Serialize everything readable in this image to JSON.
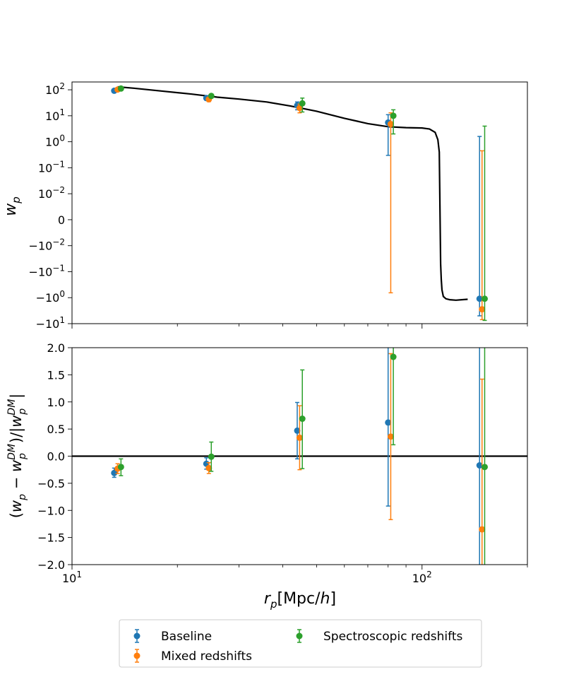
{
  "chart_data": [
    {
      "type": "scatter",
      "panel": "top",
      "ylabel_main": "w",
      "ylabel_sub": "p",
      "xscale": "log",
      "yscale": "symlog",
      "xlim": [
        10,
        200
      ],
      "ylim": [
        -10,
        200
      ],
      "yticks": [
        {
          "base": "10",
          "exp": "2",
          "sign": ""
        },
        {
          "base": "10",
          "exp": "1",
          "sign": ""
        },
        {
          "base": "10",
          "exp": "0",
          "sign": ""
        },
        {
          "base": "10",
          "exp": "−1",
          "sign": ""
        },
        {
          "base": "10",
          "exp": "−2",
          "sign": ""
        },
        {
          "base": "0",
          "exp": "",
          "sign": ""
        },
        {
          "base": "10",
          "exp": "−2",
          "sign": "−"
        },
        {
          "base": "10",
          "exp": "−1",
          "sign": "−"
        },
        {
          "base": "10",
          "exp": "0",
          "sign": "−"
        },
        {
          "base": "10",
          "exp": "1",
          "sign": "−"
        }
      ],
      "model_curve": {
        "name": "DM model",
        "color": "#000000",
        "x": [
          13.5,
          15,
          18,
          22,
          26,
          30,
          36,
          42,
          50,
          60,
          70,
          80,
          90,
          100,
          105,
          109,
          111,
          112,
          113,
          113.5,
          114,
          115,
          117,
          120,
          125,
          130,
          135
        ],
        "y": [
          130,
          115,
          90,
          68,
          52,
          44,
          34,
          24,
          15,
          8,
          5,
          3.8,
          3.5,
          3.4,
          3.1,
          2.3,
          1.2,
          0.4,
          -0.05,
          -0.2,
          -0.5,
          -0.9,
          -1.1,
          -1.2,
          -1.25,
          -1.2,
          -1.15
        ]
      },
      "series": [
        {
          "name": "Baseline",
          "color": "#1f77b4",
          "x": [
            13.2,
            24.2,
            44.0,
            80.0,
            146.0
          ],
          "y": [
            92,
            48,
            25,
            5.5,
            -1.1
          ],
          "err_lo": [
            84,
            40,
            17,
            0.3,
            -5
          ],
          "err_hi": [
            100,
            56,
            34,
            11,
            1.6
          ]
        },
        {
          "name": "Mixed redshifts",
          "color": "#ff7f0e",
          "x": [
            13.5,
            24.6,
            44.7,
            81.4,
            148.4
          ],
          "y": [
            102,
            43,
            20,
            4.8,
            -2.8
          ],
          "err_lo": [
            94,
            35,
            13,
            -0.65,
            -7
          ],
          "err_hi": [
            112,
            51,
            28,
            13,
            0.45
          ]
        },
        {
          "name": "Spectroscopic redshifts",
          "color": "#2ca02c",
          "x": [
            13.8,
            25.0,
            45.5,
            82.8,
            151.0
          ],
          "y": [
            112,
            58,
            30,
            10,
            -1.1
          ],
          "err_lo": [
            104,
            50,
            14,
            2,
            -7.5
          ],
          "err_hi": [
            120,
            66,
            48,
            17,
            4
          ]
        }
      ]
    },
    {
      "type": "scatter",
      "panel": "bottom",
      "ylabel": "(w_p − w_p^DM)/|w_p^DM|",
      "xlabel": "r_p[Mpc/h]",
      "xscale": "log",
      "xlim": [
        10,
        200
      ],
      "ylim": [
        -2.0,
        2.0
      ],
      "yticks": [
        "2.0",
        "1.5",
        "1.0",
        "0.5",
        "0.0",
        "−0.5",
        "−1.0",
        "−1.5",
        "−2.0"
      ],
      "xticks": [
        {
          "base": "10",
          "exp": "1"
        },
        {
          "base": "10",
          "exp": "2"
        }
      ],
      "reference_line": 0.0,
      "series": [
        {
          "name": "Baseline",
          "color": "#1f77b4",
          "x": [
            13.2,
            24.2,
            44.0,
            80.0,
            146.0
          ],
          "y": [
            -0.31,
            -0.14,
            0.47,
            0.62,
            -0.17
          ],
          "err_lo": [
            -0.39,
            -0.24,
            -0.05,
            -0.92,
            -2.2
          ],
          "err_hi": [
            -0.22,
            -0.03,
            0.99,
            2.2,
            2.2
          ]
        },
        {
          "name": "Mixed redshifts",
          "color": "#ff7f0e",
          "x": [
            13.5,
            24.6,
            44.7,
            81.4,
            148.4
          ],
          "y": [
            -0.23,
            -0.22,
            0.34,
            0.36,
            -1.35
          ],
          "err_lo": [
            -0.32,
            -0.32,
            -0.25,
            -1.17,
            -2.2
          ],
          "err_hi": [
            -0.14,
            -0.12,
            0.93,
            1.89,
            1.42
          ]
        },
        {
          "name": "Spectroscopic redshifts",
          "color": "#2ca02c",
          "x": [
            13.8,
            25.0,
            45.5,
            82.8,
            151.0
          ],
          "y": [
            -0.2,
            -0.01,
            0.69,
            1.83,
            -0.2
          ],
          "err_lo": [
            -0.36,
            -0.28,
            -0.23,
            0.21,
            -2.2
          ],
          "err_hi": [
            -0.05,
            0.26,
            1.59,
            2.2,
            2.2
          ]
        }
      ]
    }
  ],
  "legend": {
    "placement": "bottom-center",
    "entries": [
      "Baseline",
      "Mixed redshifts",
      "Spectroscopic redshifts"
    ]
  }
}
